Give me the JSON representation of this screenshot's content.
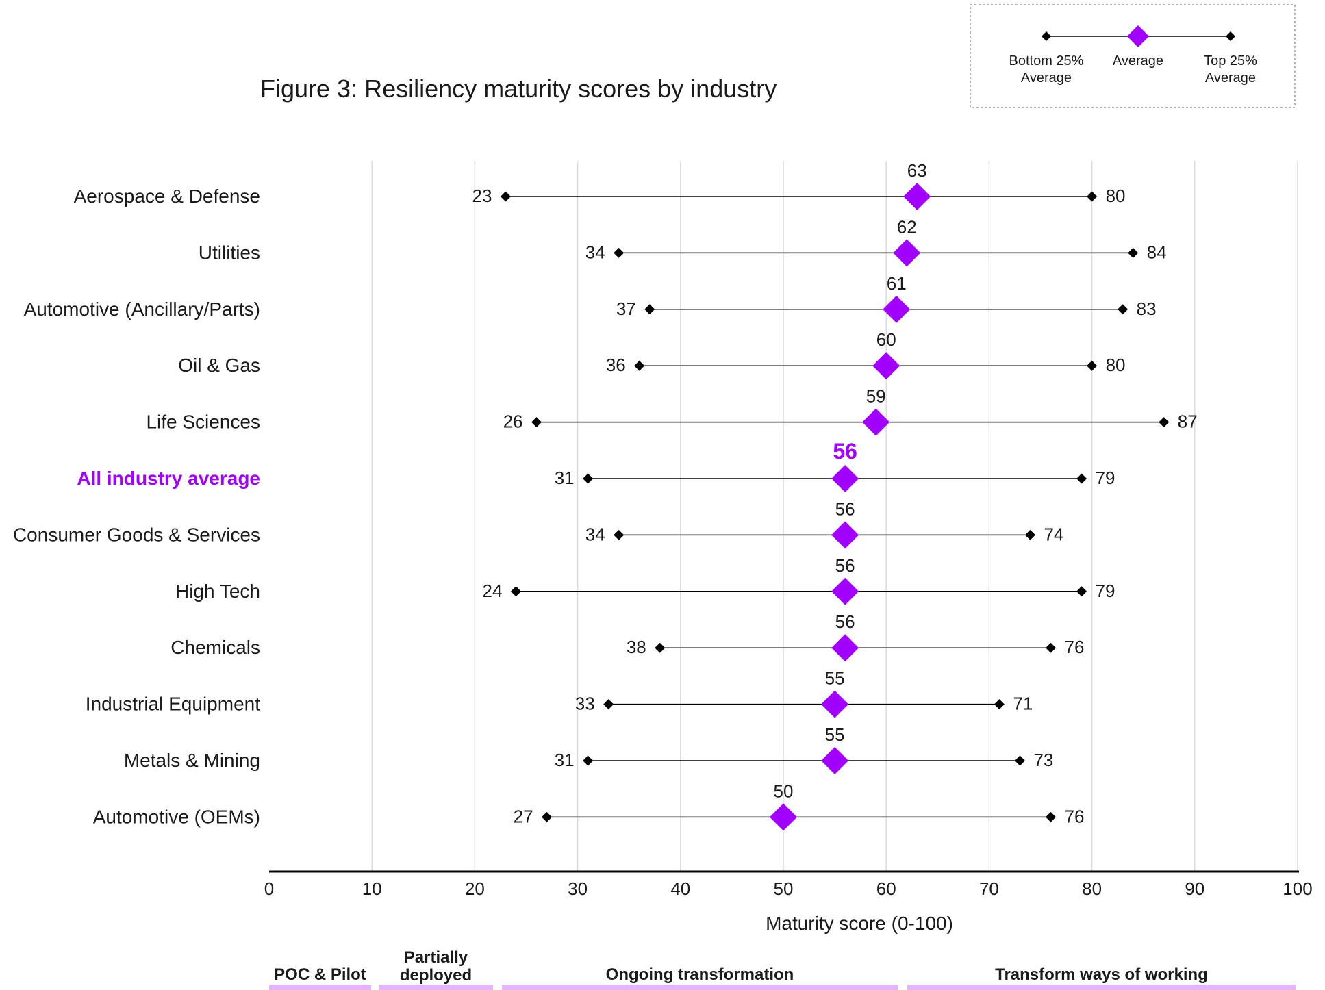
{
  "chart_data": {
    "type": "dumbbell",
    "title": "Figure 3: Resiliency maturity scores by industry",
    "xlabel": "Maturity score (0-100)",
    "xlim": [
      0,
      100
    ],
    "x_ticks": [
      "0",
      "10",
      "20",
      "30",
      "40",
      "50",
      "60",
      "70",
      "80",
      "90",
      "100"
    ],
    "grid": true,
    "legend_position": "top-right",
    "legend": {
      "bottom": "Bottom 25%\nAverage",
      "average": "Average",
      "top": "Top 25%\nAverage"
    },
    "categories": [
      "Aerospace & Defense",
      "Utilities",
      "Automotive (Ancillary/Parts)",
      "Oil & Gas",
      "Life Sciences",
      "All industry average",
      "Consumer Goods & Services",
      "High Tech",
      "Chemicals",
      "Industrial Equipment",
      "Metals & Mining",
      "Automotive (OEMs)"
    ],
    "highlight_category": "All industry average",
    "series": [
      {
        "name": "Bottom 25% Average",
        "values": [
          23,
          34,
          37,
          36,
          26,
          31,
          34,
          24,
          38,
          33,
          31,
          27
        ]
      },
      {
        "name": "Average",
        "values": [
          63,
          62,
          61,
          60,
          59,
          56,
          56,
          56,
          56,
          55,
          55,
          50
        ]
      },
      {
        "name": "Top 25% Average",
        "values": [
          80,
          84,
          83,
          80,
          87,
          79,
          74,
          79,
          76,
          71,
          73,
          76
        ]
      }
    ],
    "stages": [
      {
        "label": "POC & Pilot",
        "range": [
          0,
          10
        ]
      },
      {
        "label": "Partially\ndeployed",
        "range": [
          10,
          22
        ]
      },
      {
        "label": "Ongoing transformation",
        "range": [
          22,
          61.5
        ]
      },
      {
        "label": "Transform ways of working",
        "range": [
          61.5,
          100
        ]
      }
    ],
    "colors": {
      "average_marker": "#a100ff",
      "highlight_text": "#a100ff",
      "stage_bar": "#e6b3ff",
      "grid": "#dcdcdc",
      "axis": "#000000",
      "endpoint": "#000000"
    }
  }
}
